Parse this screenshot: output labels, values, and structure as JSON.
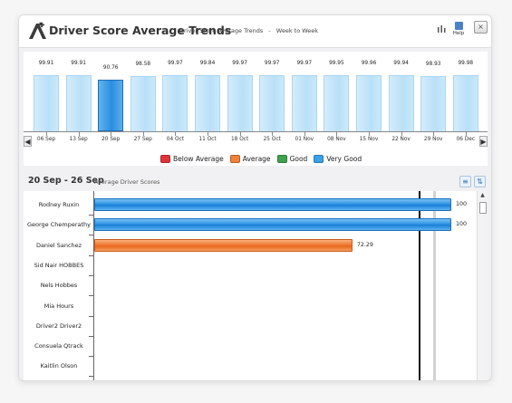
{
  "header": {
    "title": "Driver Score Average Trends",
    "subtitle": "Driver Score Average Trends",
    "separator": "-",
    "period": "Week to Week",
    "help_label": "Help",
    "close_label": "×"
  },
  "trend_chart": {
    "type": "bar",
    "selected_index": 2,
    "weeks": [
      {
        "label": "06 Sep",
        "value": "99.91"
      },
      {
        "label": "13 Sep",
        "value": "99.91"
      },
      {
        "label": "20 Sep",
        "value": "90.76"
      },
      {
        "label": "27 Sep",
        "value": "98.58"
      },
      {
        "label": "04 Oct",
        "value": "99.97"
      },
      {
        "label": "11 Oct",
        "value": "99.84"
      },
      {
        "label": "18 Oct",
        "value": "99.97"
      },
      {
        "label": "25 Oct",
        "value": "99.97"
      },
      {
        "label": "01 Nov",
        "value": "99.97"
      },
      {
        "label": "08 Nov",
        "value": "99.95"
      },
      {
        "label": "15 Nov",
        "value": "99.96"
      },
      {
        "label": "22 Nov",
        "value": "99.94"
      },
      {
        "label": "29 Nov",
        "value": "98.93"
      },
      {
        "label": "06 Dec",
        "value": "99.98"
      }
    ]
  },
  "legend": [
    {
      "label": "Below Average",
      "color": "#e0343a"
    },
    {
      "label": "Average",
      "color": "#f0803a"
    },
    {
      "label": "Good",
      "color": "#3fa34d"
    },
    {
      "label": "Very Good",
      "color": "#3aa0ea"
    }
  ],
  "detail": {
    "range": "20 Sep - 26 Sep",
    "subtitle": "Average Driver Scores"
  },
  "chart_data": {
    "type": "bar",
    "orientation": "horizontal",
    "categories": [
      "Rodney Ruxin",
      "George Chemperathy",
      "Daniel Sanchez",
      "Sid Nair HOBBES",
      "Nels Hobbes",
      "Mia Hours",
      "Driver2 Driver2",
      "Consuela Qtrack",
      "Kaitlin Olson"
    ],
    "values": [
      100,
      100,
      72.29,
      null,
      null,
      null,
      null,
      null,
      null
    ],
    "value_labels": [
      "100",
      "100",
      "72.29",
      "",
      "",
      "",
      "",
      "",
      ""
    ],
    "bands": [
      "Very Good",
      "Very Good",
      "Average",
      "",
      "",
      "",
      "",
      "",
      ""
    ],
    "xlim": [
      0,
      100
    ],
    "reference_lines": [
      90.76,
      95
    ]
  }
}
